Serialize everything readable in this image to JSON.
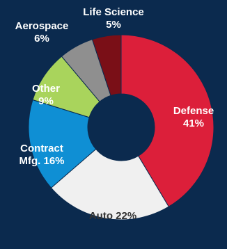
{
  "colors": {
    "background": "#0b2a4e",
    "hole": "#0b2a4e"
  },
  "chart_data": {
    "type": "pie",
    "donut": true,
    "title": "",
    "slices": [
      {
        "name": "Defense",
        "value": 41,
        "label_lines": [
          "Defense",
          "41%"
        ],
        "color": "#dc1f3a",
        "text_color": "#ffffff"
      },
      {
        "name": "Auto",
        "value": 22,
        "label_lines": [
          "Auto 22%"
        ],
        "color": "#f0f0f0",
        "text_color": "#333333"
      },
      {
        "name": "Contract Mfg.",
        "value": 16,
        "label_lines": [
          "Contract",
          "Mfg. 16%"
        ],
        "color": "#0f8fd4",
        "text_color": "#ffffff"
      },
      {
        "name": "Other",
        "value": 9,
        "label_lines": [
          "Other",
          "9%"
        ],
        "color": "#a9d45c",
        "text_color": "#ffffff"
      },
      {
        "name": "Aerospace",
        "value": 6,
        "label_lines": [
          "Aerospace",
          "6%"
        ],
        "color": "#8f8f8f",
        "text_color": "#ffffff"
      },
      {
        "name": "Life Science",
        "value": 5,
        "label_lines": [
          "Life Science",
          "5%"
        ],
        "color": "#7a0f17",
        "text_color": "#ffffff"
      }
    ]
  }
}
